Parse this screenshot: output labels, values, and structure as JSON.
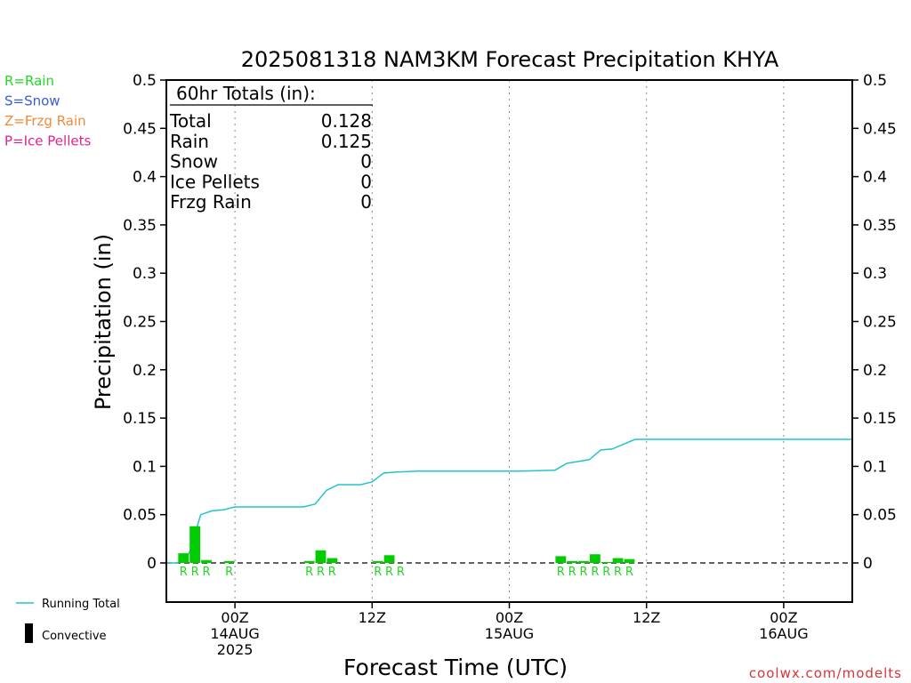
{
  "chart_data": {
    "type": "bar",
    "title": "2025081318 NAM3KM Forecast Precipitation KHYA",
    "ylabel": "Precipitation (in)",
    "xlabel": "Forecast Time (UTC)",
    "ylim": [
      0,
      0.5
    ],
    "yticks": [
      "0",
      "0.05",
      "0.1",
      "0.15",
      "0.2",
      "0.25",
      "0.3",
      "0.35",
      "0.4",
      "0.45",
      "0.5"
    ],
    "x_start": "2025-08-13T18:00Z",
    "x_end": "2025-08-16T06:00Z",
    "xticks": [
      {
        "time": "2025-08-14T00:00Z",
        "lines": [
          "00Z",
          "14AUG",
          "2025"
        ]
      },
      {
        "time": "2025-08-14T12:00Z",
        "lines": [
          "12Z"
        ]
      },
      {
        "time": "2025-08-15T00:00Z",
        "lines": [
          "00Z",
          "15AUG"
        ]
      },
      {
        "time": "2025-08-15T12:00Z",
        "lines": [
          "12Z"
        ]
      },
      {
        "time": "2025-08-16T00:00Z",
        "lines": [
          "00Z",
          "16AUG"
        ]
      }
    ],
    "grid": "vertical dotted at tick times",
    "hourly_bars": [
      {
        "time": "2025-08-13T20:00Z",
        "value": 0.01,
        "type": "R"
      },
      {
        "time": "2025-08-13T21:00Z",
        "value": 0.038,
        "type": "R"
      },
      {
        "time": "2025-08-13T22:00Z",
        "value": 0.003,
        "type": "R"
      },
      {
        "time": "2025-08-13T23:00Z",
        "value": 0.0,
        "type": ""
      },
      {
        "time": "2025-08-14T00:00Z",
        "value": 0.002,
        "type": "R"
      },
      {
        "time": "2025-08-14T07:00Z",
        "value": 0.002,
        "type": "R"
      },
      {
        "time": "2025-08-14T08:00Z",
        "value": 0.013,
        "type": "R"
      },
      {
        "time": "2025-08-14T09:00Z",
        "value": 0.005,
        "type": "R"
      },
      {
        "time": "2025-08-14T13:00Z",
        "value": 0.002,
        "type": "R"
      },
      {
        "time": "2025-08-14T14:00Z",
        "value": 0.008,
        "type": "R"
      },
      {
        "time": "2025-08-14T15:00Z",
        "value": 0.0,
        "type": "R"
      },
      {
        "time": "2025-08-15T05:00Z",
        "value": 0.007,
        "type": "R"
      },
      {
        "time": "2025-08-15T06:00Z",
        "value": 0.002,
        "type": "R"
      },
      {
        "time": "2025-08-15T07:00Z",
        "value": 0.002,
        "type": "R"
      },
      {
        "time": "2025-08-15T08:00Z",
        "value": 0.009,
        "type": "R"
      },
      {
        "time": "2025-08-15T09:00Z",
        "value": 0.001,
        "type": "R"
      },
      {
        "time": "2025-08-15T10:00Z",
        "value": 0.005,
        "type": "R"
      },
      {
        "time": "2025-08-15T11:00Z",
        "value": 0.004,
        "type": "R"
      }
    ],
    "running_total": [
      {
        "time": "2025-08-13T18:00Z",
        "value": 0.0
      },
      {
        "time": "2025-08-13T19:00Z",
        "value": 0.0
      },
      {
        "time": "2025-08-13T20:00Z",
        "value": 0.01
      },
      {
        "time": "2025-08-13T21:00Z",
        "value": 0.05
      },
      {
        "time": "2025-08-13T22:00Z",
        "value": 0.054
      },
      {
        "time": "2025-08-13T23:00Z",
        "value": 0.055
      },
      {
        "time": "2025-08-14T00:00Z",
        "value": 0.058
      },
      {
        "time": "2025-08-14T06:00Z",
        "value": 0.058
      },
      {
        "time": "2025-08-14T07:00Z",
        "value": 0.061
      },
      {
        "time": "2025-08-14T08:00Z",
        "value": 0.075
      },
      {
        "time": "2025-08-14T09:00Z",
        "value": 0.081
      },
      {
        "time": "2025-08-14T11:00Z",
        "value": 0.081
      },
      {
        "time": "2025-08-14T12:00Z",
        "value": 0.084
      },
      {
        "time": "2025-08-14T13:00Z",
        "value": 0.093
      },
      {
        "time": "2025-08-14T14:00Z",
        "value": 0.094
      },
      {
        "time": "2025-08-14T16:00Z",
        "value": 0.095
      },
      {
        "time": "2025-08-15T01:00Z",
        "value": 0.095
      },
      {
        "time": "2025-08-15T04:00Z",
        "value": 0.096
      },
      {
        "time": "2025-08-15T05:00Z",
        "value": 0.103
      },
      {
        "time": "2025-08-15T07:00Z",
        "value": 0.107
      },
      {
        "time": "2025-08-15T08:00Z",
        "value": 0.117
      },
      {
        "time": "2025-08-15T09:00Z",
        "value": 0.118
      },
      {
        "time": "2025-08-15T10:00Z",
        "value": 0.123
      },
      {
        "time": "2025-08-15T11:00Z",
        "value": 0.128
      },
      {
        "time": "2025-08-16T06:00Z",
        "value": 0.128
      }
    ],
    "totals_box": {
      "header": "60hr Totals (in):",
      "rows": [
        {
          "label": "Total",
          "value": "0.128"
        },
        {
          "label": "Rain",
          "value": "0.125"
        },
        {
          "label": "Snow",
          "value": "0"
        },
        {
          "label": "Ice Pellets",
          "value": "0"
        },
        {
          "label": "Frzg Rain",
          "value": "0"
        }
      ]
    },
    "ptype_legend": [
      {
        "text": "R=Rain",
        "color": "#22d822"
      },
      {
        "text": "S=Snow",
        "color": "#3b5bdb"
      },
      {
        "text": "Z=Frzg Rain",
        "color": "#f08a3a"
      },
      {
        "text": "P=Ice Pellets",
        "color": "#e0238a"
      }
    ],
    "series_legend": [
      {
        "name": "Running Total",
        "color": "#22c4cc",
        "kind": "line"
      },
      {
        "name": "Convective",
        "color": "#000000",
        "kind": "bar"
      }
    ],
    "bar_color": "#00cc00",
    "credit": "coolwx.com/modelts"
  }
}
